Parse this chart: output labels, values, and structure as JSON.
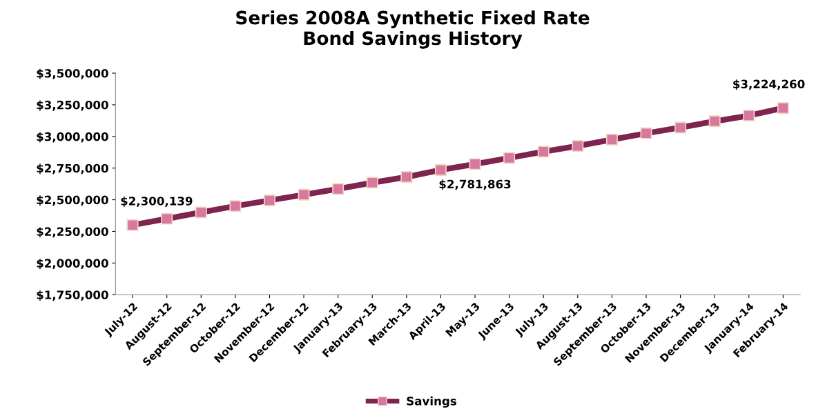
{
  "chart_data": {
    "type": "line",
    "title": "Series 2008A Synthetic Fixed Rate\nBond Savings History",
    "categories": [
      "July-12",
      "August-12",
      "September-12",
      "October-12",
      "November-12",
      "December-12",
      "January-13",
      "February-13",
      "March-13",
      "April-13",
      "May-13",
      "June-13",
      "July-13",
      "August-13",
      "September-13",
      "October-13",
      "November-13",
      "December-13",
      "January-14",
      "February-14"
    ],
    "series": [
      {
        "name": "Savings",
        "color": "#7f2350",
        "colors": [
          "#d9789f",
          "#d9789f",
          "#d9789f",
          "#d9789f",
          "#d9789f",
          "#d9789f",
          "#d9789f",
          "#d9789f",
          "#d9789f",
          "#d9789f",
          "#d9789f",
          "#d9789f",
          "#d9789f",
          "#d9789f",
          "#d9789f",
          "#d9789f",
          "#d9789f",
          "#d9789f",
          "#d9789f",
          "#d9789f"
        ],
        "values": [
          2300139,
          2350000,
          2400000,
          2450000,
          2495000,
          2540000,
          2585000,
          2635000,
          2680000,
          2735000,
          2781863,
          2830000,
          2880000,
          2925000,
          2975000,
          3025000,
          3070000,
          3120000,
          3165000,
          3224260
        ],
        "value_labels": [
          "$2,300,139",
          null,
          null,
          null,
          null,
          null,
          null,
          null,
          null,
          null,
          "$2,781,863",
          null,
          null,
          null,
          null,
          null,
          null,
          null,
          null,
          "$3,224,260"
        ]
      }
    ],
    "ylim": [
      1750000,
      3500000
    ],
    "yticks": [
      {
        "value": 1750000,
        "label": "$1,750,000"
      },
      {
        "value": 2000000,
        "label": "$2,000,000"
      },
      {
        "value": 2250000,
        "label": "$2,250,000"
      },
      {
        "value": 2500000,
        "label": "$2,500,000"
      },
      {
        "value": 2750000,
        "label": "$2,750,000"
      },
      {
        "value": 3000000,
        "label": "$3,000,000"
      },
      {
        "value": 3250000,
        "label": "$3,250,000"
      },
      {
        "value": 3500000,
        "label": "$3,500,000"
      }
    ],
    "grid": false,
    "legend": "bottom",
    "marker": "square",
    "line_style": "solid"
  }
}
